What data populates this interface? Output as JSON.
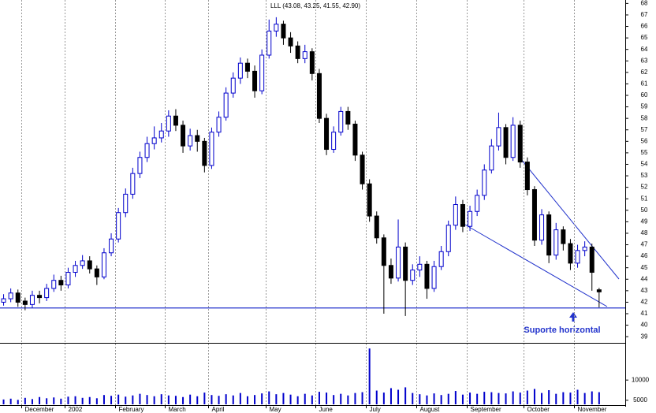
{
  "chart_data": {
    "type": "candlestick",
    "title": "LLL (43.08, 43.25, 41.55, 42.90)",
    "categories": [
      null,
      null,
      null,
      "December",
      null,
      null,
      null,
      null,
      null,
      "2002",
      null,
      null,
      null,
      null,
      null,
      null,
      "February",
      null,
      null,
      null,
      null,
      null,
      null,
      "March",
      null,
      null,
      null,
      null,
      null,
      "April",
      null,
      null,
      null,
      null,
      null,
      null,
      null,
      "May",
      null,
      null,
      null,
      null,
      null,
      null,
      "June",
      null,
      null,
      null,
      null,
      null,
      null,
      "July",
      null,
      null,
      null,
      null,
      null,
      null,
      "August",
      null,
      null,
      null,
      null,
      null,
      null,
      "September",
      null,
      null,
      null,
      null,
      null,
      null,
      null,
      "October",
      null,
      null,
      null,
      null,
      null,
      null,
      "November",
      null,
      null,
      null
    ],
    "open": [
      42.0,
      42.3,
      42.8,
      42.1,
      41.8,
      42.6,
      42.4,
      43.2,
      43.9,
      43.5,
      44.6,
      45.2,
      45.6,
      44.9,
      44.2,
      46.3,
      47.5,
      49.8,
      51.4,
      53.2,
      54.6,
      55.8,
      56.3,
      56.9,
      58.2,
      57.4,
      55.6,
      56.5,
      56.0,
      53.9,
      56.8,
      58.1,
      60.2,
      61.5,
      62.8,
      62.1,
      60.4,
      63.5,
      65.6,
      66.2,
      65.0,
      64.3,
      63.2,
      63.8,
      61.9,
      58.0,
      55.3,
      56.8,
      58.6,
      57.5,
      54.8,
      52.3,
      49.5,
      47.6,
      45.2,
      44.1,
      46.8,
      43.9,
      44.8,
      45.3,
      43.2,
      45.1,
      46.4,
      48.7,
      50.5,
      48.6,
      49.9,
      51.3,
      53.5,
      55.6,
      57.2,
      54.6,
      57.4,
      54.2,
      51.8,
      47.4,
      49.6,
      46.1,
      48.3,
      47.1,
      45.4,
      46.5,
      46.8,
      43.08
    ],
    "high": [
      42.7,
      43.2,
      43.1,
      42.4,
      43.0,
      43.0,
      43.6,
      44.4,
      44.3,
      45.0,
      45.6,
      46.1,
      46.0,
      45.2,
      46.7,
      48.0,
      50.2,
      51.9,
      53.7,
      55.1,
      56.4,
      57.3,
      57.6,
      58.7,
      58.8,
      57.8,
      57.1,
      57.0,
      56.3,
      57.2,
      58.6,
      60.7,
      62.0,
      63.3,
      63.2,
      62.6,
      64.0,
      66.6,
      66.8,
      66.5,
      65.5,
      64.7,
      64.4,
      64.1,
      62.3,
      58.4,
      57.3,
      59.0,
      59.0,
      57.8,
      55.1,
      52.7,
      49.9,
      47.9,
      45.8,
      49.2,
      47.2,
      45.3,
      46.0,
      45.6,
      45.6,
      46.9,
      49.1,
      51.2,
      50.9,
      50.4,
      51.8,
      54.0,
      56.2,
      58.5,
      57.5,
      58.1,
      57.8,
      54.6,
      52.1,
      50.1,
      49.9,
      48.9,
      48.6,
      47.5,
      47.0,
      47.3,
      47.1,
      43.25
    ],
    "low": [
      41.7,
      42.0,
      41.6,
      41.3,
      41.5,
      41.9,
      42.1,
      42.9,
      43.0,
      43.2,
      44.2,
      44.9,
      44.5,
      43.5,
      44.0,
      46.0,
      47.2,
      49.4,
      51.0,
      52.8,
      54.2,
      55.3,
      55.9,
      56.4,
      56.9,
      55.0,
      55.2,
      55.1,
      53.3,
      53.6,
      56.4,
      57.8,
      59.8,
      61.0,
      61.5,
      59.8,
      60.1,
      63.2,
      65.1,
      64.4,
      63.7,
      62.8,
      62.8,
      61.3,
      57.6,
      54.8,
      55.0,
      56.5,
      57.0,
      54.3,
      51.8,
      49.0,
      47.1,
      41.0,
      43.6,
      43.8,
      40.8,
      43.5,
      44.2,
      42.3,
      42.9,
      44.8,
      46.0,
      48.3,
      48.1,
      48.2,
      49.5,
      50.9,
      53.2,
      55.2,
      54.0,
      54.3,
      53.7,
      51.3,
      46.9,
      47.0,
      45.4,
      45.7,
      46.5,
      44.8,
      45.0,
      46.0,
      43.0,
      41.55
    ],
    "close": [
      42.3,
      42.8,
      42.0,
      41.8,
      42.6,
      42.4,
      43.2,
      43.9,
      43.5,
      44.6,
      45.2,
      45.6,
      44.9,
      44.2,
      46.3,
      47.5,
      49.8,
      51.4,
      53.2,
      54.6,
      55.8,
      56.3,
      56.9,
      58.2,
      57.4,
      55.6,
      56.5,
      56.0,
      53.9,
      56.8,
      58.1,
      60.2,
      61.5,
      62.8,
      62.1,
      60.4,
      63.5,
      65.6,
      66.2,
      65.0,
      64.3,
      63.2,
      63.8,
      61.9,
      58.0,
      55.3,
      56.8,
      58.6,
      57.5,
      54.8,
      52.3,
      49.5,
      47.6,
      45.2,
      44.1,
      46.8,
      43.9,
      44.8,
      45.3,
      43.2,
      45.1,
      46.4,
      48.7,
      50.5,
      48.6,
      49.9,
      51.3,
      53.5,
      55.6,
      57.2,
      54.6,
      57.4,
      54.2,
      51.8,
      47.4,
      49.6,
      46.1,
      48.3,
      47.1,
      45.4,
      46.5,
      46.8,
      44.6,
      42.9
    ],
    "ylim": [
      38.6,
      68.3
    ],
    "yticks": [
      39,
      40,
      41,
      42,
      43,
      44,
      45,
      46,
      47,
      48,
      49,
      50,
      51,
      52,
      53,
      54,
      55,
      56,
      57,
      58,
      59,
      60,
      61,
      62,
      63,
      64,
      65,
      66,
      67,
      68
    ],
    "up_color": "#0000cc",
    "down_color": "#000000",
    "grid": true,
    "support": 41.5,
    "support_color": "#2233cc",
    "annotation": "Suporte horizontal",
    "volume": {
      "values": [
        5200,
        5400,
        5100,
        5600,
        5300,
        5800,
        5500,
        5700,
        5400,
        5900,
        6000,
        5600,
        5800,
        5500,
        6300,
        6100,
        6400,
        5900,
        6200,
        6600,
        6300,
        6000,
        6500,
        6200,
        6100,
        5800,
        6400,
        6000,
        6900,
        6300,
        6100,
        6500,
        6200,
        6800,
        6000,
        6300,
        6700,
        7200,
        6500,
        6800,
        6400,
        6000,
        6600,
        6200,
        7100,
        6900,
        6300,
        6600,
        6200,
        6800,
        7000,
        17800,
        7400,
        6900,
        8000,
        7600,
        8200,
        6800,
        6500,
        6200,
        6700,
        6300,
        6600,
        7300,
        6400,
        6900,
        6600,
        7100,
        7000,
        6800,
        6700,
        7200,
        6900,
        7400,
        7800,
        6800,
        7500,
        6600,
        7000,
        6900,
        7600,
        6800,
        7200,
        7000
      ],
      "ylim": [
        4000,
        18800
      ],
      "yticks": [
        5000,
        10000
      ],
      "color": "#0000cc"
    }
  }
}
